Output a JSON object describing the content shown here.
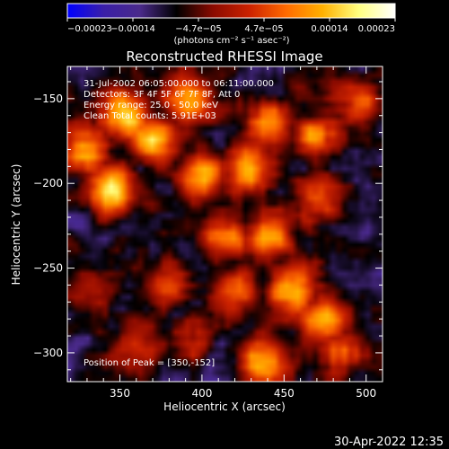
{
  "chart_data": {
    "type": "heatmap",
    "title": "Reconstructed RHESSI Image",
    "xlabel": "Heliocentric X (arcsec)",
    "ylabel": "Heliocentric Y (arcsec)",
    "xlim": [
      318,
      510
    ],
    "ylim": [
      -317,
      -131
    ],
    "x_ticks": [
      350,
      400,
      450,
      500
    ],
    "y_ticks": [
      -150,
      -200,
      -250,
      -300
    ],
    "x_tick_labels": [
      "350",
      "400",
      "450",
      "500"
    ],
    "y_tick_labels": [
      "−150",
      "−200",
      "−250",
      "−300"
    ],
    "colorbar": {
      "range": [
        -0.00023,
        0.00023
      ],
      "tick_labels": [
        "−0.00023",
        "−0.00014",
        "−4.7e−05",
        "4.7e−05",
        "0.00014",
        "0.00023"
      ],
      "unit_label": "(photons cm⁻² s⁻¹ asec⁻²)",
      "colors": [
        "#0000ff",
        "#3a1fa8",
        "#4a2a8a",
        "#000000",
        "#8a0a00",
        "#cc2200",
        "#ff6a00",
        "#ffb000",
        "#ffff80",
        "#ffffff"
      ]
    },
    "annotations": [
      "31-Jul-2002 06:05:00.000 to 06:11:00.000",
      "Detectors: 3F 4F 5F 6F 7F 8F, Att 0",
      "Energy range: 25.0 - 50.0 keV",
      "Clean    Total counts: 5.91E+03"
    ],
    "peak_label": "Position of Peak = [350,-152]",
    "hotspots": [
      {
        "x": 345,
        "y": -203,
        "v": 1.0
      },
      {
        "x": 352,
        "y": -160,
        "v": 0.95
      },
      {
        "x": 330,
        "y": -180,
        "v": 0.8
      },
      {
        "x": 370,
        "y": -175,
        "v": 0.85
      },
      {
        "x": 392,
        "y": -150,
        "v": 0.8
      },
      {
        "x": 400,
        "y": -195,
        "v": 0.65
      },
      {
        "x": 428,
        "y": -192,
        "v": 0.8
      },
      {
        "x": 440,
        "y": -165,
        "v": 0.7
      },
      {
        "x": 470,
        "y": -172,
        "v": 0.7
      },
      {
        "x": 495,
        "y": -150,
        "v": 0.6
      },
      {
        "x": 470,
        "y": -210,
        "v": 0.55
      },
      {
        "x": 415,
        "y": -232,
        "v": 0.65
      },
      {
        "x": 440,
        "y": -230,
        "v": 0.7
      },
      {
        "x": 455,
        "y": -262,
        "v": 0.9
      },
      {
        "x": 475,
        "y": -280,
        "v": 0.8
      },
      {
        "x": 420,
        "y": -265,
        "v": 0.6
      },
      {
        "x": 485,
        "y": -300,
        "v": 0.55
      },
      {
        "x": 438,
        "y": -305,
        "v": 0.85
      },
      {
        "x": 380,
        "y": -260,
        "v": 0.45
      },
      {
        "x": 360,
        "y": -298,
        "v": 0.45
      },
      {
        "x": 330,
        "y": -265,
        "v": 0.35
      },
      {
        "x": 395,
        "y": -290,
        "v": 0.4
      }
    ]
  },
  "footer": {
    "timestamp": "30-Apr-2022 12:35"
  }
}
